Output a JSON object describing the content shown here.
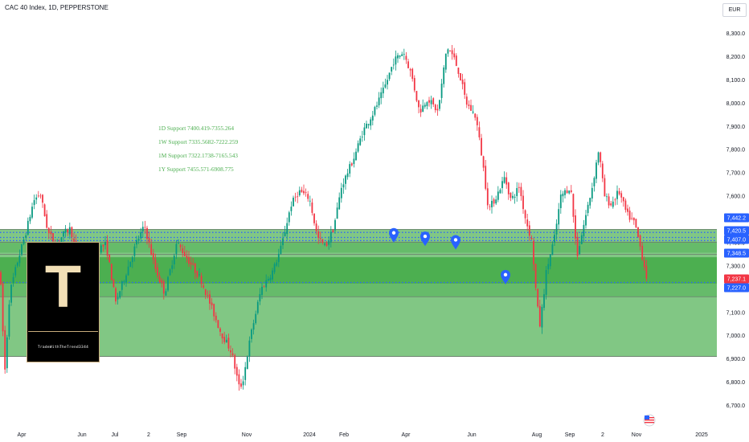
{
  "header": {
    "title": "CAC 40 Index, 1D, PEPPERSTONE",
    "currency": "EUR"
  },
  "logo": {
    "letter": "T",
    "text": "TradeWithTheTrend3344"
  },
  "chart_data": {
    "type": "candlestick",
    "title": "CAC 40 Index, 1D, PEPPERSTONE",
    "ylim": [
      6640,
      8360
    ],
    "y_ticks": [
      6700,
      6800,
      6900,
      7000,
      7100,
      7200,
      7300,
      7400,
      7500,
      7600,
      7700,
      7800,
      7900,
      8000,
      8100,
      8200,
      8300
    ],
    "x_ticks": [
      "Apr",
      "Jun",
      "Jul",
      "2",
      "Sep",
      "Nov",
      "2024",
      "Feb",
      "Apr",
      "Jun",
      "Aug",
      "Sep",
      "2",
      "Nov",
      "2025"
    ],
    "price_path": [
      [
        0,
        7280
      ],
      [
        6,
        6840
      ],
      [
        12,
        7180
      ],
      [
        22,
        7320
      ],
      [
        32,
        7440
      ],
      [
        42,
        7580
      ],
      [
        50,
        7610
      ],
      [
        60,
        7440
      ],
      [
        70,
        7390
      ],
      [
        80,
        7440
      ],
      [
        88,
        7460
      ],
      [
        100,
        7260
      ],
      [
        110,
        7340
      ],
      [
        120,
        7370
      ],
      [
        132,
        7390
      ],
      [
        144,
        7140
      ],
      [
        156,
        7260
      ],
      [
        170,
        7400
      ],
      [
        180,
        7470
      ],
      [
        192,
        7300
      ],
      [
        205,
        7180
      ],
      [
        220,
        7400
      ],
      [
        235,
        7320
      ],
      [
        250,
        7240
      ],
      [
        262,
        7130
      ],
      [
        275,
        7010
      ],
      [
        288,
        6930
      ],
      [
        298,
        6770
      ],
      [
        302,
        6800
      ],
      [
        312,
        7000
      ],
      [
        325,
        7200
      ],
      [
        340,
        7280
      ],
      [
        350,
        7380
      ],
      [
        362,
        7560
      ],
      [
        372,
        7620
      ],
      [
        385,
        7590
      ],
      [
        395,
        7420
      ],
      [
        405,
        7380
      ],
      [
        415,
        7460
      ],
      [
        425,
        7640
      ],
      [
        440,
        7760
      ],
      [
        452,
        7880
      ],
      [
        465,
        7960
      ],
      [
        478,
        8060
      ],
      [
        490,
        8180
      ],
      [
        502,
        8220
      ],
      [
        512,
        8120
      ],
      [
        522,
        7960
      ],
      [
        532,
        8020
      ],
      [
        545,
        7960
      ],
      [
        556,
        8240
      ],
      [
        564,
        8200
      ],
      [
        572,
        8120
      ],
      [
        580,
        8000
      ],
      [
        592,
        7940
      ],
      [
        600,
        7760
      ],
      [
        608,
        7540
      ],
      [
        618,
        7600
      ],
      [
        628,
        7680
      ],
      [
        636,
        7580
      ],
      [
        646,
        7640
      ],
      [
        654,
        7500
      ],
      [
        662,
        7400
      ],
      [
        668,
        7140
      ],
      [
        672,
        7040
      ],
      [
        680,
        7280
      ],
      [
        690,
        7420
      ],
      [
        698,
        7600
      ],
      [
        710,
        7640
      ],
      [
        718,
        7340
      ],
      [
        728,
        7500
      ],
      [
        737,
        7640
      ],
      [
        745,
        7800
      ],
      [
        752,
        7600
      ],
      [
        760,
        7560
      ],
      [
        770,
        7620
      ],
      [
        780,
        7520
      ],
      [
        790,
        7480
      ],
      [
        798,
        7360
      ],
      [
        806,
        7227
      ]
    ],
    "support_levels": [
      {
        "label": "1D Support 7400.419-7355.264",
        "low": 7355.264,
        "high": 7400.419
      },
      {
        "label": "1W Support 7335.5682-7222.259",
        "low": 7222.259,
        "high": 7335.5682
      },
      {
        "label": "1M Support 7322.1738-7165.543",
        "low": 7165.543,
        "high": 7322.1738
      },
      {
        "label": "1Y Support 7455.571-6908.775",
        "low": 6908.775,
        "high": 7455.571
      }
    ],
    "price_labels": [
      {
        "text": "7,442.2",
        "value": 7442.2,
        "color": "#2962ff"
      },
      {
        "text": "7,420.5",
        "value": 7420.5,
        "color": "#2962ff"
      },
      {
        "text": "7,407.0",
        "value": 7407.0,
        "color": "#2962ff"
      },
      {
        "text": "7,348.5",
        "value": 7348.5,
        "color": "#2962ff"
      },
      {
        "text": "7,237.1",
        "value": 7237.1,
        "color": "#f23645"
      },
      {
        "text": "7,227.0",
        "value": 7227.0,
        "color": "#2962ff"
      }
    ],
    "event_markers": [
      {
        "date": "Mar",
        "value": 7430,
        "x_index": 490
      },
      {
        "date": "Apr",
        "value": 7415,
        "x_index": 529
      },
      {
        "date": "May",
        "value": 7400,
        "x_index": 567
      },
      {
        "date": "Jul",
        "value": 7250,
        "x_index": 629
      }
    ],
    "colors": {
      "up": "#089981",
      "down": "#f23645",
      "zone_light": "#81c784",
      "zone_mid": "#66bb6a",
      "zone_dark": "#4caf50",
      "dotted": "#2962ff",
      "text_green": "#4caf50"
    }
  }
}
